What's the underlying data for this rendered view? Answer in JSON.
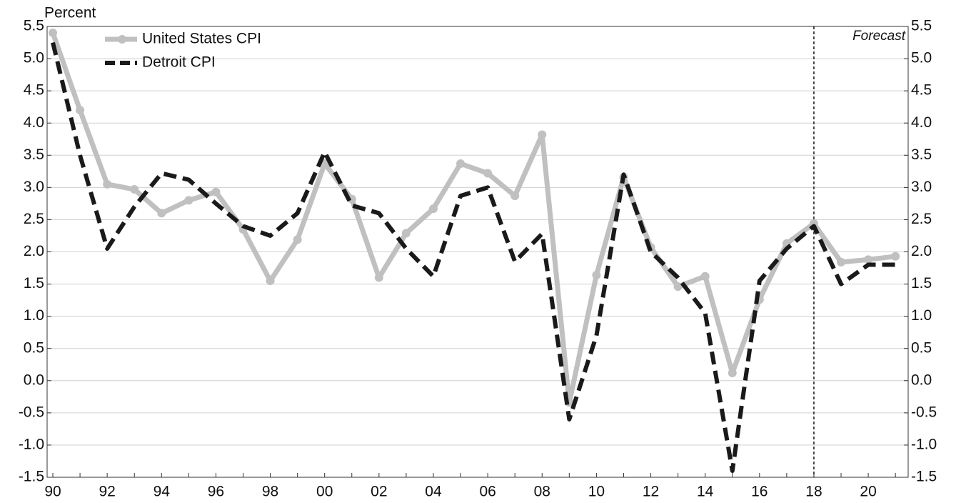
{
  "chart_data": {
    "type": "line",
    "y_label": "Percent",
    "annotation": "Forecast",
    "forecast_at": "18",
    "categories": [
      "90",
      null,
      "92",
      null,
      "94",
      null,
      "96",
      null,
      "98",
      null,
      "00",
      null,
      "02",
      null,
      "04",
      null,
      "06",
      null,
      "08",
      null,
      "10",
      null,
      "12",
      null,
      "14",
      null,
      "16",
      null,
      "18",
      null,
      "20",
      null
    ],
    "series": [
      {
        "name": "United States CPI",
        "color": "#c0c0c0",
        "dashed": false,
        "markers": true,
        "values": [
          5.4,
          4.2,
          3.05,
          2.97,
          2.6,
          2.8,
          2.93,
          2.35,
          1.55,
          2.19,
          3.37,
          2.82,
          1.6,
          2.29,
          2.67,
          3.37,
          3.22,
          2.87,
          3.82,
          -0.34,
          1.64,
          3.16,
          2.07,
          1.46,
          1.62,
          0.12,
          1.26,
          2.13,
          2.44,
          1.84,
          1.88,
          1.93
        ]
      },
      {
        "name": "Detroit CPI",
        "color": "#1a1a1a",
        "dashed": true,
        "markers": false,
        "values": [
          5.25,
          3.5,
          2.05,
          2.7,
          3.22,
          3.12,
          2.75,
          2.4,
          2.25,
          2.6,
          3.55,
          2.72,
          2.6,
          2.05,
          1.62,
          2.87,
          3.0,
          1.85,
          2.28,
          -0.6,
          0.7,
          3.2,
          2.0,
          1.6,
          1.05,
          -1.4,
          1.55,
          2.05,
          2.4,
          1.5,
          1.8,
          1.8
        ]
      }
    ],
    "ylim": [
      -1.5,
      5.5
    ],
    "yticks": [
      -1.5,
      {
        "value": -1,
        "label": "-1.0"
      },
      -0.5,
      {
        "value": 0,
        "label": "0.0"
      },
      0.5,
      {
        "value": 1,
        "label": "1.0"
      },
      1.5,
      {
        "value": 2,
        "label": "2.0"
      },
      2.5,
      {
        "value": 3,
        "label": "3.0"
      },
      3.5,
      {
        "value": 4,
        "label": "4.0"
      },
      4.5,
      {
        "value": 5,
        "label": "5.0"
      },
      5.5
    ],
    "y2lim": [
      -1.5,
      5.5
    ],
    "y2ticks": [
      -1.5,
      {
        "value": -1,
        "label": "-1.0"
      },
      -0.5,
      {
        "value": 0,
        "label": "0.0"
      },
      0.5,
      {
        "value": 1,
        "label": "1.0"
      },
      1.5,
      {
        "value": 2,
        "label": "2.0"
      },
      2.5,
      {
        "value": 3,
        "label": "3.0"
      },
      3.5,
      {
        "value": 4,
        "label": "4.0"
      },
      4.5,
      {
        "value": 5,
        "label": "5.0"
      },
      5.5
    ],
    "grid": true,
    "legend": "upper-left"
  }
}
